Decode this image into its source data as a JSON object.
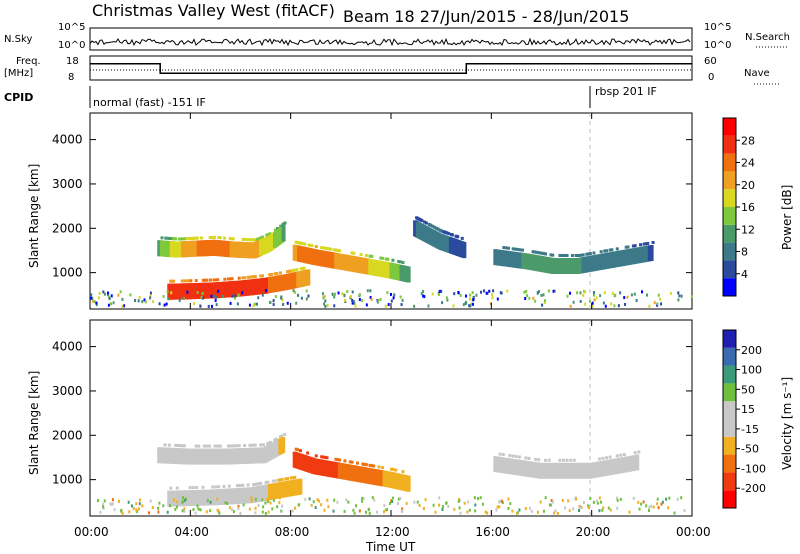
{
  "header": {
    "station": "Christmas Valley West (fitACF)",
    "beam_range": "Beam 18  27/Jun/2015 - 28/Jun/2015"
  },
  "left_labels": {
    "nsky": "N.Sky",
    "nsky_tick_top": "10^5",
    "nsky_tick_bottom": "10^0",
    "freq": "Freq.",
    "freq_unit": "[MHz]",
    "freq_tick_top": "18",
    "freq_tick_bottom": "8",
    "cpid": "CPID"
  },
  "right_labels": {
    "nsearch": "N.Search",
    "nsearch_tick_top": "10^5",
    "nsearch_tick_bottom": "10^0",
    "nave": "Nave",
    "nave_tick_top": "60",
    "nave_tick_bottom": "0"
  },
  "cpid_labels": {
    "first": "normal (fast) -151 IF",
    "second": "rbsp 201 IF"
  },
  "colors": {
    "axis": "#000000",
    "power_scale": [
      "#0000ff",
      "#2a4a9e",
      "#3c7a8a",
      "#4a9a6a",
      "#7ec83c",
      "#d8d820",
      "#f0a020",
      "#f07010",
      "#f03010",
      "#ff0000"
    ],
    "velocity_scale": [
      "#2020b0",
      "#3a6ab0",
      "#3a9a7a",
      "#70c040",
      "#c8c8c8",
      "#c8c8c8",
      "#f0b020",
      "#f07010",
      "#f03a10",
      "#ff0000"
    ]
  },
  "panel_labels": {
    "ylabel": "Slant Range [km]",
    "xlabel": "Time UT",
    "power_label": "Power [dB]",
    "velocity_label": "Velocity [m s⁻¹]"
  },
  "x_ticks": [
    "00:00",
    "04:00",
    "08:00",
    "12:00",
    "16:00",
    "20:00",
    "00:00"
  ],
  "y_ticks": [
    "1000",
    "2000",
    "3000",
    "4000"
  ],
  "power_ticks": [
    "4",
    "8",
    "12",
    "16",
    "20",
    "24",
    "28"
  ],
  "velocity_ticks": [
    "-200",
    "-100",
    "-50",
    "-15",
    "15",
    "50",
    "100",
    "200"
  ],
  "chart_data": [
    {
      "type": "heatmap",
      "title": "",
      "xlabel": "",
      "ylabel": "Slant Range [km]",
      "xlim": [
        0,
        24
      ],
      "ylim": [
        180,
        4600
      ],
      "colorbar": {
        "label": "Power [dB]",
        "range": [
          0,
          32
        ],
        "ticks": [
          4,
          8,
          12,
          16,
          20,
          24,
          28
        ]
      },
      "series": [
        {
          "x": [
            2.8,
            3.5,
            4.2,
            5.0,
            5.8,
            6.6,
            7.2,
            7.8
          ],
          "y": [
            1550,
            1520,
            1540,
            1560,
            1520,
            1500,
            1650,
            1900
          ],
          "values": [
            12,
            18,
            22,
            24,
            22,
            20,
            18,
            12
          ]
        },
        {
          "x": [
            3.2,
            4.0,
            5.0,
            6.0,
            7.0,
            8.0,
            8.8
          ],
          "y": [
            570,
            580,
            600,
            640,
            700,
            800,
            900
          ],
          "values": [
            26,
            28,
            28,
            28,
            26,
            24,
            20
          ]
        },
        {
          "x": [
            8.2,
            9.0,
            10.0,
            11.0,
            12.0,
            12.8
          ],
          "y": [
            1450,
            1350,
            1250,
            1150,
            1050,
            950
          ],
          "values": [
            22,
            24,
            22,
            20,
            16,
            10
          ]
        },
        {
          "x": [
            16.2,
            17.5,
            18.5,
            19.5,
            20.5,
            21.5,
            22.5
          ],
          "y": [
            1350,
            1250,
            1150,
            1150,
            1250,
            1350,
            1450
          ],
          "values": [
            8,
            10,
            12,
            10,
            8,
            8,
            6
          ]
        },
        {
          "x": [
            13.0,
            13.5,
            14.0,
            14.5,
            15.0
          ],
          "y": [
            2000,
            1850,
            1700,
            1600,
            1500
          ],
          "values": [
            6,
            8,
            8,
            6,
            6
          ]
        }
      ]
    },
    {
      "type": "heatmap",
      "title": "",
      "xlabel": "Time UT",
      "ylabel": "Slant Range [km]",
      "xlim": [
        0,
        24
      ],
      "ylim": [
        180,
        4600
      ],
      "colorbar": {
        "label": "Velocity [m s⁻¹]",
        "range": [
          -250,
          250
        ],
        "ticks": [
          -200,
          -100,
          -50,
          -15,
          15,
          50,
          100,
          200
        ]
      },
      "series": [
        {
          "x": [
            2.8,
            4.0,
            5.5,
            7.0,
            7.8
          ],
          "y": [
            1550,
            1520,
            1520,
            1550,
            1800
          ],
          "values": [
            0,
            0,
            0,
            0,
            -20
          ]
        },
        {
          "x": [
            3.2,
            5.0,
            6.5,
            7.5,
            8.5
          ],
          "y": [
            570,
            600,
            650,
            750,
            850
          ],
          "values": [
            0,
            0,
            -5,
            -20,
            -30
          ]
        },
        {
          "x": [
            8.2,
            9.0,
            10.0,
            11.0,
            12.0,
            12.8
          ],
          "y": [
            1450,
            1300,
            1200,
            1100,
            1000,
            900
          ],
          "values": [
            -120,
            -150,
            -100,
            -80,
            -40,
            -20
          ]
        },
        {
          "x": [
            16.2,
            18.0,
            20.0,
            22.0
          ],
          "y": [
            1350,
            1200,
            1200,
            1400
          ],
          "values": [
            0,
            0,
            0,
            0
          ]
        }
      ]
    },
    {
      "type": "line",
      "title": "",
      "xlabel": "",
      "ylabel": "Freq. [MHz]",
      "xlim": [
        0,
        24
      ],
      "ylim": [
        8,
        18
      ],
      "series": [
        {
          "name": "Freq.",
          "x": [
            0,
            2.8,
            2.8,
            15.0,
            15.0,
            24
          ],
          "values": [
            14.8,
            14.8,
            10.8,
            10.8,
            14.8,
            14.8
          ]
        }
      ]
    }
  ]
}
